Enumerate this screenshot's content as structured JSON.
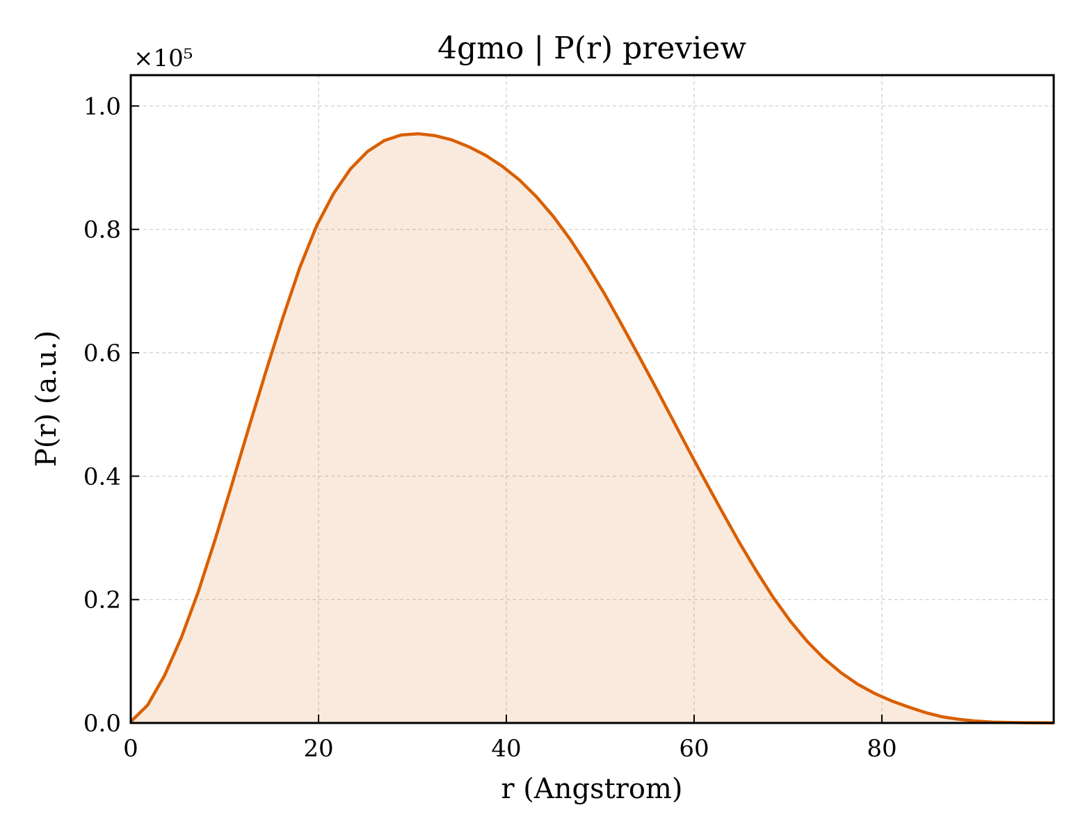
{
  "chart_data": {
    "type": "area",
    "title": "4gmo | P(r) preview",
    "xlabel": "r (Angstrom)",
    "ylabel": "P(r) (a.u.)",
    "y_multiplier": "×10⁵",
    "xlim": [
      0,
      98.3
    ],
    "ylim": [
      0,
      1.05
    ],
    "xticks": [
      0,
      20,
      40,
      60,
      80
    ],
    "xtick_labels": [
      "0",
      "20",
      "40",
      "60",
      "80"
    ],
    "yticks": [
      0.0,
      0.2,
      0.4,
      0.6,
      0.8,
      1.0
    ],
    "ytick_labels": [
      "0.0",
      "0.2",
      "0.4",
      "0.6",
      "0.8",
      "1.0"
    ],
    "grid": true,
    "legend": "none",
    "line_color": "#d95f02",
    "fill_color": "#d95f02",
    "fill_opacity": 0.13,
    "series": [
      {
        "x": [
          0,
          1.8,
          3.6,
          5.4,
          7.2,
          9.0,
          10.8,
          12.6,
          14.4,
          16.2,
          18.0,
          19.8,
          21.6,
          23.4,
          25.2,
          27.0,
          28.8,
          30.6,
          32.4,
          34.2,
          36.0,
          37.8,
          39.6,
          41.4,
          43.2,
          45.0,
          46.8,
          48.6,
          50.4,
          52.2,
          54.0,
          55.8,
          57.6,
          59.4,
          61.2,
          63.0,
          64.8,
          66.6,
          68.4,
          70.2,
          72.0,
          73.8,
          75.6,
          77.4,
          79.2,
          81.0,
          82.8,
          84.6,
          86.4,
          88.2,
          90.0,
          91.8,
          93.6,
          95.4,
          97.2,
          98.3
        ],
        "y": [
          0.002,
          0.029,
          0.077,
          0.139,
          0.213,
          0.298,
          0.388,
          0.48,
          0.57,
          0.657,
          0.738,
          0.806,
          0.858,
          0.898,
          0.926,
          0.944,
          0.953,
          0.955,
          0.952,
          0.945,
          0.934,
          0.92,
          0.902,
          0.88,
          0.853,
          0.821,
          0.784,
          0.742,
          0.697,
          0.648,
          0.598,
          0.547,
          0.495,
          0.443,
          0.392,
          0.342,
          0.293,
          0.247,
          0.204,
          0.166,
          0.133,
          0.105,
          0.082,
          0.063,
          0.048,
          0.036,
          0.026,
          0.017,
          0.01,
          0.006,
          0.003,
          0.0015,
          0.0008,
          0.0004,
          0.0002,
          0.0001
        ]
      }
    ]
  }
}
